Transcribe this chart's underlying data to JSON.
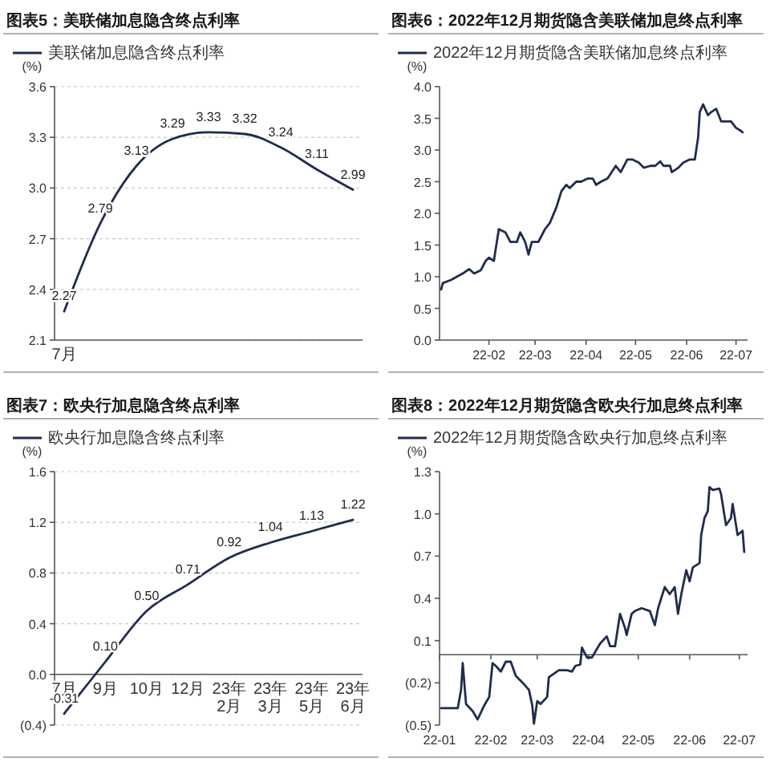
{
  "chart_data": [
    {
      "type": "line",
      "title": "图表5：美联储加息隐含终点利率",
      "ylabel": "(%)",
      "categories": [
        "7月",
        null,
        null,
        null,
        null,
        null,
        null,
        null,
        null
      ],
      "series": [
        {
          "name": "美联储加息隐含终点利率",
          "color": "#1f2d4d",
          "values": [
            2.27,
            2.79,
            3.13,
            3.29,
            3.33,
            3.32,
            3.24,
            3.11,
            2.99
          ],
          "value_labels": [
            "2.27",
            "2.79",
            "3.13",
            "3.29",
            "3.33",
            "3.32",
            "3.24",
            "3.11",
            "2.99"
          ]
        }
      ],
      "ylim": [
        2.1,
        3.6
      ],
      "yticks": [
        2.1,
        2.4,
        2.7,
        {
          "value": 3,
          "label": "3.0"
        },
        3.3,
        3.6
      ],
      "grid": "y",
      "legend": "top"
    },
    {
      "type": "line",
      "title": "图表6：2022年12月期货隐含美联储加息终点利率",
      "ylabel": "(%)",
      "series": [
        {
          "name": "2022年12月期货隐含美联储加息终点利率",
          "color": "#1f2d4d",
          "x": [
            "2022-01-03",
            "2022-01-04",
            "2022-01-09",
            "2022-01-16",
            "2022-01-20",
            "2022-01-23",
            "2022-01-27",
            "2022-01-30",
            "2022-02-01",
            "2022-02-04",
            "2022-02-05",
            "2022-02-07",
            "2022-02-11",
            "2022-02-14",
            "2022-02-18",
            "2022-02-20",
            "2022-02-23",
            "2022-02-25",
            "2022-02-27",
            "2022-03-03",
            "2022-03-07",
            "2022-03-10",
            "2022-03-14",
            "2022-03-17",
            "2022-03-20",
            "2022-03-22",
            "2022-03-26",
            "2022-03-29",
            "2022-04-02",
            "2022-04-05",
            "2022-04-07",
            "2022-04-10",
            "2022-04-14",
            "2022-04-19",
            "2022-04-22",
            "2022-04-26",
            "2022-04-29",
            "2022-05-03",
            "2022-05-06",
            "2022-05-10",
            "2022-05-13",
            "2022-05-16",
            "2022-05-18",
            "2022-05-22",
            "2022-05-23",
            "2022-05-27",
            "2022-05-30",
            "2022-06-03",
            "2022-06-06",
            "2022-06-08",
            "2022-06-09",
            "2022-06-11",
            "2022-06-14",
            "2022-06-16",
            "2022-06-19",
            "2022-06-22",
            "2022-06-26",
            "2022-06-28",
            "2022-07-01",
            "2022-07-04",
            "2022-07-05"
          ],
          "values": [
            0.8,
            0.9,
            0.95,
            1.05,
            1.12,
            1.05,
            1.1,
            1.25,
            1.3,
            1.25,
            1.42,
            1.75,
            1.7,
            1.55,
            1.55,
            1.7,
            1.55,
            1.35,
            1.55,
            1.55,
            1.75,
            1.85,
            2.1,
            2.35,
            2.45,
            2.4,
            2.5,
            2.5,
            2.55,
            2.55,
            2.45,
            2.5,
            2.55,
            2.75,
            2.65,
            2.85,
            2.85,
            2.8,
            2.72,
            2.75,
            2.75,
            2.82,
            2.75,
            2.75,
            2.65,
            2.72,
            2.8,
            2.85,
            2.85,
            3.2,
            3.6,
            3.72,
            3.55,
            3.6,
            3.65,
            3.45,
            3.45,
            3.45,
            3.35,
            3.3,
            3.28
          ]
        }
      ],
      "xlim": [
        "2022-01-02",
        "2022-07-08"
      ],
      "xticks": [
        {
          "value": "2022-02",
          "label": "22-02"
        },
        {
          "value": "2022-03",
          "label": "22-03"
        },
        {
          "value": "2022-04",
          "label": "22-04"
        },
        {
          "value": "2022-05",
          "label": "22-05"
        },
        {
          "value": "2022-06",
          "label": "22-06"
        },
        {
          "value": "2022-07",
          "label": "22-07"
        }
      ],
      "ylim": [
        0,
        4
      ],
      "yticks": [
        {
          "value": 0,
          "label": "0.0"
        },
        0.5,
        {
          "value": 1,
          "label": "1.0"
        },
        1.5,
        {
          "value": 2,
          "label": "2.0"
        },
        2.5,
        {
          "value": 3,
          "label": "3.0"
        },
        3.5,
        {
          "value": 4,
          "label": "4.0"
        }
      ],
      "legend": "top"
    },
    {
      "type": "line",
      "title": "图表7：欧央行加息隐含终点利率",
      "ylabel": "(%)",
      "categories": [
        "7月",
        "9月",
        "10月",
        "12月",
        "23年2月",
        "23年3月",
        "23年5月",
        "23年6月"
      ],
      "series": [
        {
          "name": "欧央行加息隐含终点利率",
          "color": "#1f2d4d",
          "values": [
            -0.31,
            0.1,
            0.5,
            0.71,
            0.92,
            1.04,
            1.13,
            1.22
          ],
          "value_labels": [
            "-0.31",
            "0.10",
            "0.50",
            "0.71",
            "0.92",
            "1.04",
            "1.13",
            "1.22"
          ]
        }
      ],
      "ylim": [
        -0.4,
        1.6
      ],
      "yticks": [
        {
          "value": -0.4,
          "label": "(0.4)"
        },
        {
          "value": 0,
          "label": "0.0"
        },
        0.4,
        0.8,
        1.2,
        1.6
      ],
      "grid": "y",
      "legend": "top"
    },
    {
      "type": "line",
      "title": "图表8：2022年12月期货隐含欧央行加息终点利率",
      "ylabel": "(%)",
      "series": [
        {
          "name": "2022年12月期货隐含欧央行加息终点利率",
          "color": "#1f2d4d",
          "x": [
            "2022-01-02",
            "2022-01-12",
            "2022-01-14",
            "2022-01-15",
            "2022-01-17",
            "2022-01-21",
            "2022-01-24",
            "2022-01-28",
            "2022-01-31",
            "2022-02-02",
            "2022-02-04",
            "2022-02-07",
            "2022-02-10",
            "2022-02-13",
            "2022-02-16",
            "2022-02-21",
            "2022-02-24",
            "2022-02-26",
            "2022-02-27",
            "2022-03-01",
            "2022-03-03",
            "2022-03-07",
            "2022-03-08",
            "2022-03-14",
            "2022-03-19",
            "2022-03-22",
            "2022-03-24",
            "2022-03-27",
            "2022-03-28",
            "2022-03-31",
            "2022-04-03",
            "2022-04-05",
            "2022-04-08",
            "2022-04-12",
            "2022-04-14",
            "2022-04-17",
            "2022-04-20",
            "2022-04-23",
            "2022-04-24",
            "2022-04-27",
            "2022-04-29",
            "2022-05-03",
            "2022-05-08",
            "2022-05-11",
            "2022-05-13",
            "2022-05-17",
            "2022-05-20",
            "2022-05-23",
            "2022-05-25",
            "2022-05-27",
            "2022-05-30",
            "2022-06-01",
            "2022-06-03",
            "2022-06-07",
            "2022-06-08",
            "2022-06-10",
            "2022-06-12",
            "2022-06-13",
            "2022-06-15",
            "2022-06-19",
            "2022-06-20",
            "2022-06-23",
            "2022-06-26",
            "2022-06-27",
            "2022-06-30",
            "2022-07-03",
            "2022-07-04"
          ],
          "values": [
            -0.38,
            -0.38,
            -0.25,
            -0.06,
            -0.35,
            -0.4,
            -0.46,
            -0.36,
            -0.3,
            -0.06,
            -0.08,
            -0.12,
            -0.05,
            -0.05,
            -0.15,
            -0.21,
            -0.25,
            -0.36,
            -0.49,
            -0.33,
            -0.35,
            -0.3,
            -0.16,
            -0.11,
            -0.11,
            -0.12,
            -0.08,
            -0.07,
            0.05,
            -0.02,
            -0.02,
            0.02,
            0.08,
            0.13,
            0.06,
            0.06,
            0.29,
            0.19,
            0.14,
            0.29,
            0.31,
            0.33,
            0.31,
            0.21,
            0.33,
            0.48,
            0.43,
            0.48,
            0.29,
            0.43,
            0.6,
            0.52,
            0.62,
            0.65,
            0.85,
            0.97,
            1.02,
            1.19,
            1.17,
            1.18,
            1.14,
            0.92,
            0.97,
            1.07,
            0.85,
            0.88,
            0.73
          ]
        }
      ],
      "xlim": [
        "2022-01-01",
        "2022-07-06"
      ],
      "xticks": [
        {
          "value": "2022-01",
          "label": "22-01"
        },
        {
          "value": "2022-02",
          "label": "22-02"
        },
        {
          "value": "2022-03",
          "label": "22-03"
        },
        {
          "value": "2022-04",
          "label": "22-04"
        },
        {
          "value": "2022-05",
          "label": "22-05"
        },
        {
          "value": "2022-06",
          "label": "22-06"
        },
        {
          "value": "2022-07",
          "label": "22-07"
        }
      ],
      "ylim": [
        -0.5,
        1.3
      ],
      "yticks": [
        {
          "value": -0.5,
          "label": "(0.5)"
        },
        {
          "value": -0.2,
          "label": "(0.2)"
        },
        0.1,
        0.4,
        0.7,
        {
          "value": 1,
          "label": "1.0"
        },
        1.3
      ],
      "legend": "top"
    }
  ]
}
